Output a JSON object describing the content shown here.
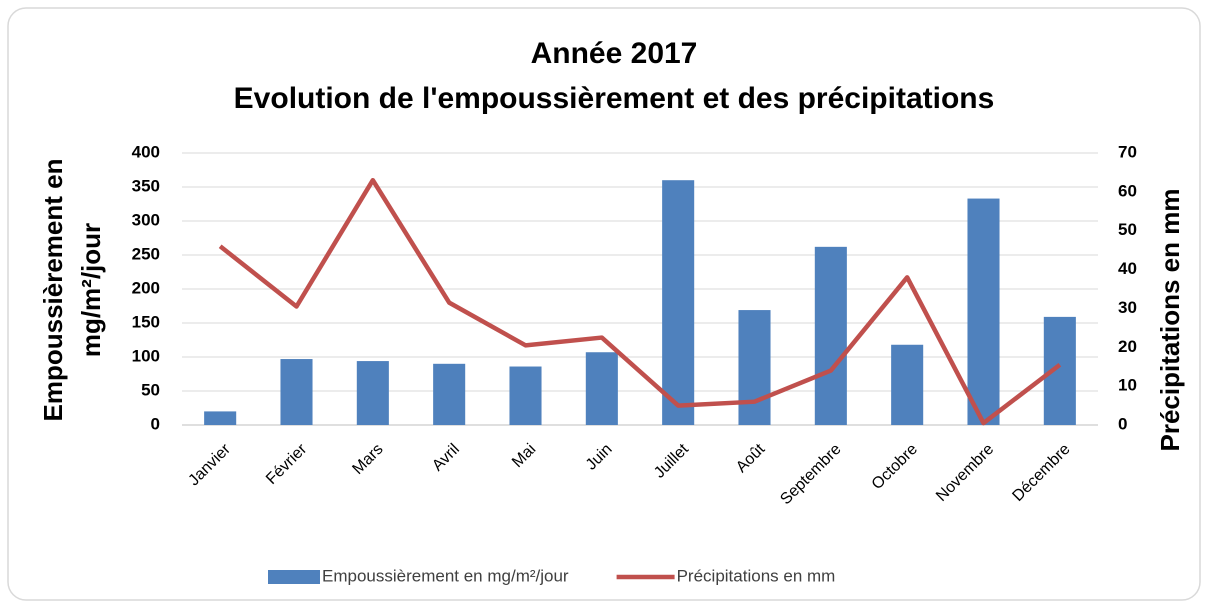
{
  "chart_data": {
    "type": "bar_line",
    "title": "Année 2017",
    "subtitle": "Evolution de l'empoussièrement et des précipitations",
    "ylabel": [
      "Empoussièrement  en",
      "mg/m²/jour"
    ],
    "y2label": "Précipitations  en mm",
    "categories": [
      "Janvier",
      "Février",
      "Mars",
      "Avril",
      "Mai",
      "Juin",
      "Juillet",
      "Août",
      "Septembre",
      "Octobre",
      "Novembre",
      "Décembre"
    ],
    "series": [
      {
        "name": "Empoussièrement en mg/m²/jour",
        "color": "#4f81bd",
        "type": "bar",
        "values": [
          20,
          97,
          94,
          90,
          86,
          107,
          360,
          169,
          262,
          118,
          333,
          159
        ]
      },
      {
        "name": "Précipitations en mm",
        "color": "#c0504d",
        "type": "line",
        "axis": "y2",
        "values": [
          46,
          30.5,
          63,
          31.5,
          20.5,
          22.5,
          5,
          6,
          14,
          38,
          0.5,
          15.5
        ]
      }
    ],
    "ylim": [
      0,
      400
    ],
    "yticks": [
      0,
      50,
      100,
      150,
      200,
      250,
      300,
      350,
      400
    ],
    "y2lim": [
      0,
      70
    ],
    "y2ticks": [
      0,
      10,
      20,
      30,
      40,
      50,
      60,
      70
    ],
    "grid": true,
    "legend": "bottom"
  }
}
